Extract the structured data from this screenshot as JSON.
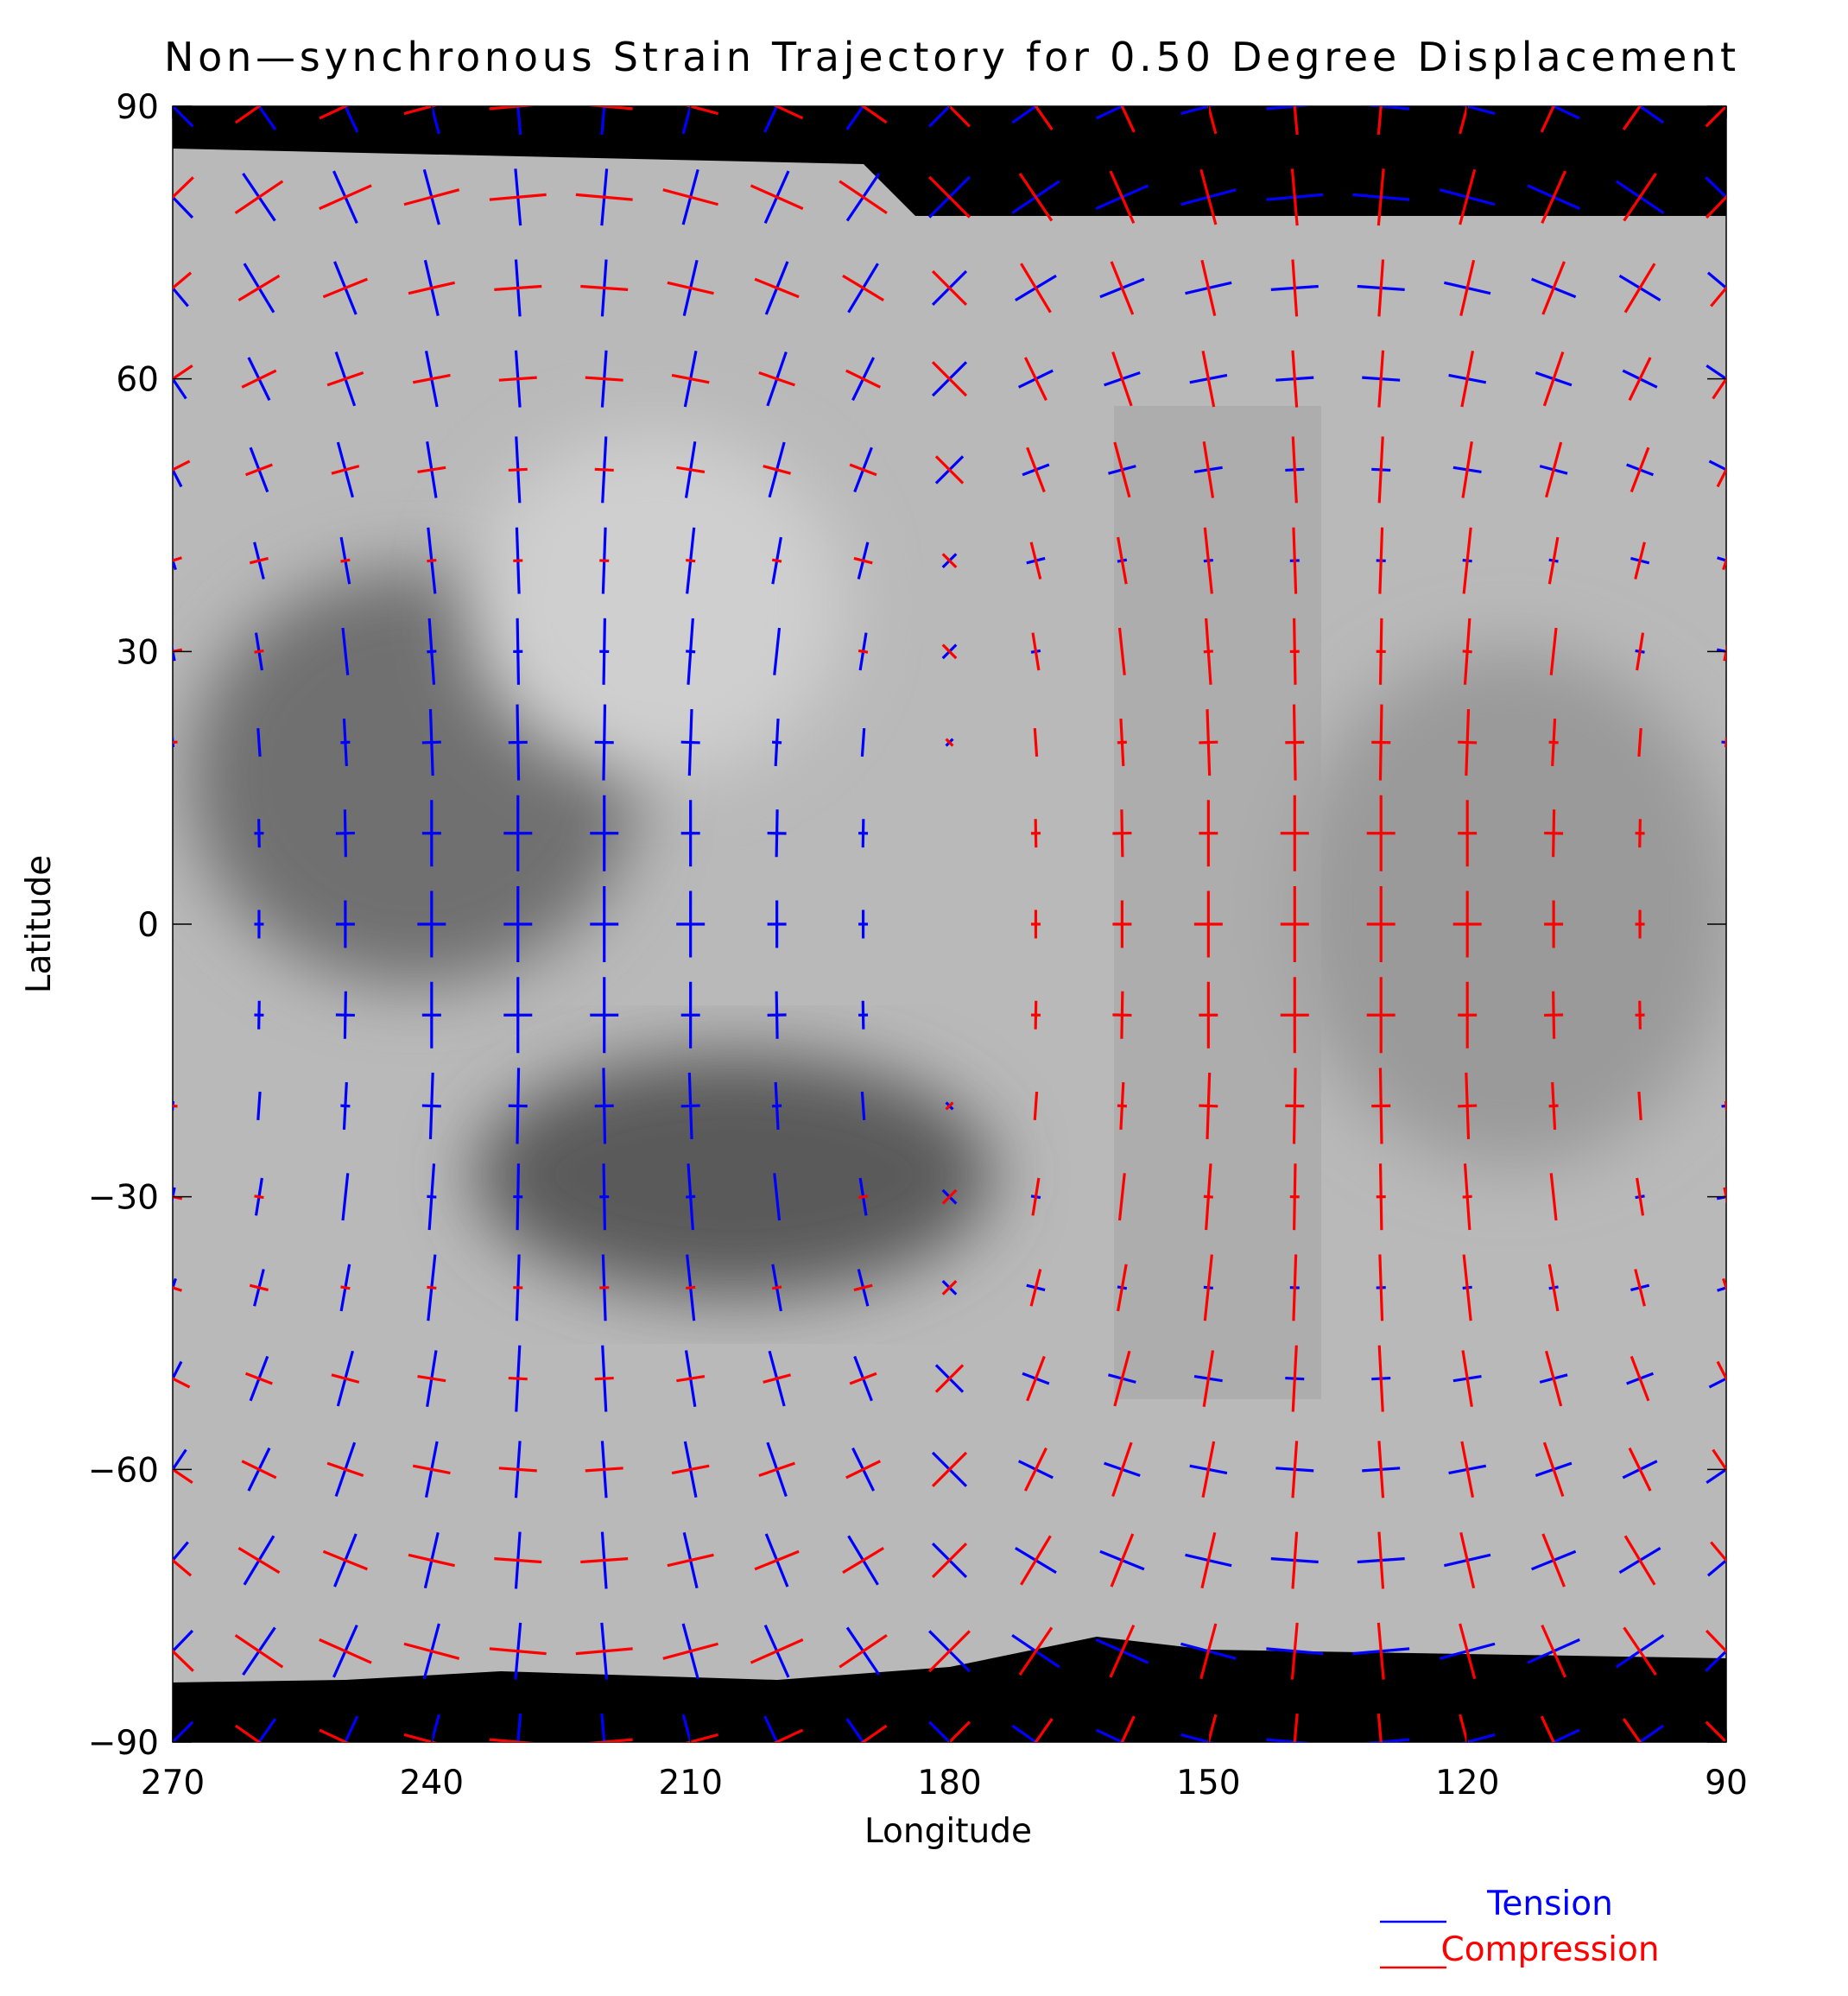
{
  "chart_data": {
    "type": "strain-field",
    "title": "Non—synchronous Strain Trajectory for 0.50 Degree Displacement",
    "xlabel": "Longitude",
    "ylabel": "Latitude",
    "xlim": [
      270,
      90
    ],
    "ylim": [
      -90,
      90
    ],
    "xticks": [
      270,
      240,
      210,
      180,
      150,
      120,
      90
    ],
    "yticks": [
      90,
      60,
      30,
      0,
      {
        "value": -30,
        "label": "−30"
      },
      {
        "value": -60,
        "label": "−60"
      },
      {
        "value": -90,
        "label": "−90"
      }
    ],
    "legend": "bottom-right",
    "series": [
      {
        "name": "Tension",
        "color": "#0000ff"
      },
      {
        "name": "Compression",
        "color": "#ff0000"
      }
    ],
    "x": [
      270,
      260,
      250,
      240,
      230,
      220,
      210,
      200,
      190,
      180,
      170,
      160,
      150,
      140,
      130,
      120,
      110,
      100,
      90
    ],
    "y": [
      90,
      80,
      70,
      60,
      50,
      40,
      30,
      20,
      10,
      0,
      -10,
      -20,
      -30,
      -40,
      -50,
      -60,
      -70,
      -80,
      -90
    ],
    "axis1": [
      [
        6,
        6,
        6,
        6,
        6,
        6,
        6,
        6,
        6,
        6,
        6,
        6,
        6,
        6,
        6,
        6,
        6,
        6,
        6
      ],
      [
        6,
        6,
        6,
        6,
        6,
        6,
        6,
        6,
        6,
        6,
        6,
        6,
        6,
        6,
        6,
        6,
        6,
        6,
        6
      ],
      [
        5,
        6,
        6,
        6,
        6,
        6,
        6,
        6,
        6,
        5,
        5,
        5,
        5,
        5,
        5,
        5,
        5,
        5,
        5
      ],
      [
        5,
        5,
        6,
        6,
        6,
        6,
        6,
        6,
        5,
        5,
        4,
        4,
        4,
        4,
        4,
        4,
        4,
        4,
        5
      ],
      [
        4,
        5,
        6,
        6,
        7,
        7,
        6,
        6,
        5,
        4,
        3,
        3,
        3,
        2,
        2,
        3,
        3,
        3,
        4
      ],
      [
        2,
        4,
        5,
        7,
        7,
        7,
        7,
        5,
        4,
        2,
        2,
        1,
        1,
        1,
        1,
        1,
        1,
        2,
        2
      ],
      [
        2,
        4,
        5,
        7,
        7,
        7,
        7,
        5,
        4,
        2,
        1,
        0,
        -1,
        -1,
        -1,
        -1,
        0,
        1,
        2
      ],
      [
        1,
        3,
        5,
        7,
        8,
        8,
        7,
        5,
        3,
        1,
        0,
        -1,
        -2,
        -2,
        -2,
        -2,
        -1,
        0,
        1
      ],
      [
        0,
        3,
        5,
        7,
        8,
        8,
        7,
        5,
        3,
        0,
        -1,
        -2,
        -2,
        -3,
        -3,
        -2,
        -2,
        -1,
        0
      ],
      [
        0,
        3,
        5,
        7,
        8,
        8,
        7,
        5,
        3,
        0,
        -1,
        -2,
        -3,
        -3,
        -3,
        -3,
        -2,
        -1,
        0
      ],
      [
        0,
        3,
        5,
        7,
        8,
        8,
        7,
        5,
        3,
        0,
        -1,
        -2,
        -2,
        -3,
        -3,
        -2,
        -2,
        -1,
        0
      ],
      [
        1,
        3,
        5,
        7,
        8,
        8,
        7,
        5,
        3,
        1,
        0,
        -1,
        -2,
        -2,
        -2,
        -2,
        -1,
        0,
        1
      ],
      [
        2,
        4,
        5,
        7,
        7,
        7,
        7,
        5,
        4,
        2,
        1,
        0,
        -1,
        -1,
        -1,
        -1,
        0,
        1,
        2
      ],
      [
        2,
        4,
        5,
        7,
        7,
        7,
        7,
        5,
        4,
        2,
        2,
        1,
        1,
        1,
        1,
        1,
        1,
        2,
        2
      ],
      [
        4,
        5,
        6,
        6,
        7,
        7,
        6,
        6,
        5,
        4,
        3,
        3,
        3,
        2,
        2,
        3,
        3,
        3,
        4
      ],
      [
        5,
        5,
        6,
        6,
        6,
        6,
        6,
        6,
        5,
        5,
        4,
        4,
        4,
        4,
        4,
        4,
        4,
        4,
        5
      ],
      [
        5,
        6,
        6,
        6,
        6,
        6,
        6,
        6,
        6,
        5,
        5,
        5,
        5,
        5,
        5,
        5,
        5,
        5,
        5
      ],
      [
        6,
        6,
        6,
        6,
        6,
        6,
        6,
        6,
        6,
        6,
        6,
        6,
        6,
        6,
        6,
        6,
        6,
        6,
        6
      ],
      [
        6,
        6,
        6,
        6,
        6,
        6,
        6,
        6,
        6,
        6,
        6,
        6,
        6,
        6,
        6,
        6,
        6,
        6,
        6
      ]
    ],
    "axis2": [
      [
        -6,
        -6,
        -6,
        -6,
        -6,
        -6,
        -6,
        -6,
        -6,
        -6,
        -6,
        -6,
        -6,
        -6,
        -6,
        -6,
        -6,
        -6,
        -6
      ],
      [
        -6,
        -6,
        -6,
        -6,
        -6,
        -6,
        -6,
        -6,
        -6,
        -6,
        -6,
        -6,
        -6,
        -6,
        -6,
        -6,
        -6,
        -6,
        -6
      ],
      [
        -5,
        -5,
        -5,
        -5,
        -5,
        -5,
        -5,
        -5,
        -5,
        -5,
        -6,
        -6,
        -6,
        -6,
        -6,
        -6,
        -6,
        -6,
        -5
      ],
      [
        -5,
        -4,
        -4,
        -4,
        -4,
        -4,
        -4,
        -4,
        -4,
        -5,
        -5,
        -6,
        -6,
        -6,
        -6,
        -6,
        -6,
        -5,
        -5
      ],
      [
        -4,
        -3,
        -3,
        -3,
        -2,
        -2,
        -3,
        -3,
        -3,
        -4,
        -5,
        -6,
        -6,
        -7,
        -7,
        -6,
        -6,
        -5,
        -4
      ],
      [
        -2,
        -2,
        -1,
        -1,
        -1,
        -1,
        -1,
        -1,
        -2,
        -2,
        -4,
        -5,
        -7,
        -7,
        -7,
        -7,
        -5,
        -4,
        -2
      ],
      [
        -2,
        -1,
        0,
        1,
        1,
        1,
        1,
        0,
        -1,
        -2,
        -4,
        -5,
        -7,
        -7,
        -7,
        -7,
        -5,
        -4,
        -2
      ],
      [
        -1,
        0,
        1,
        2,
        2,
        2,
        2,
        1,
        0,
        -1,
        -3,
        -5,
        -7,
        -8,
        -8,
        -7,
        -5,
        -3,
        -1
      ],
      [
        0,
        1,
        2,
        2,
        3,
        3,
        2,
        2,
        1,
        0,
        -3,
        -5,
        -7,
        -8,
        -8,
        -7,
        -5,
        -3,
        0
      ],
      [
        0,
        1,
        2,
        3,
        3,
        3,
        3,
        2,
        1,
        0,
        -3,
        -5,
        -7,
        -8,
        -8,
        -7,
        -5,
        -3,
        0
      ],
      [
        0,
        1,
        2,
        2,
        3,
        3,
        2,
        2,
        1,
        0,
        -3,
        -5,
        -7,
        -8,
        -8,
        -7,
        -5,
        -3,
        0
      ],
      [
        -1,
        0,
        1,
        2,
        2,
        2,
        2,
        1,
        0,
        -1,
        -3,
        -5,
        -7,
        -8,
        -8,
        -7,
        -5,
        -3,
        -1
      ],
      [
        -2,
        -1,
        0,
        1,
        1,
        1,
        1,
        0,
        -1,
        -2,
        -4,
        -5,
        -7,
        -7,
        -7,
        -7,
        -5,
        -4,
        -2
      ],
      [
        -2,
        -2,
        -1,
        -1,
        -1,
        -1,
        -1,
        -1,
        -2,
        -2,
        -4,
        -5,
        -7,
        -7,
        -7,
        -7,
        -5,
        -4,
        -2
      ],
      [
        -4,
        -3,
        -3,
        -3,
        -2,
        -2,
        -3,
        -3,
        -3,
        -4,
        -5,
        -6,
        -6,
        -7,
        -7,
        -6,
        -6,
        -5,
        -4
      ],
      [
        -5,
        -4,
        -4,
        -4,
        -4,
        -4,
        -4,
        -4,
        -4,
        -5,
        -5,
        -6,
        -6,
        -6,
        -6,
        -6,
        -6,
        -5,
        -5
      ],
      [
        -5,
        -5,
        -5,
        -5,
        -5,
        -5,
        -5,
        -5,
        -5,
        -5,
        -6,
        -6,
        -6,
        -6,
        -6,
        -6,
        -6,
        -6,
        -5
      ],
      [
        -6,
        -6,
        -6,
        -6,
        -6,
        -6,
        -6,
        -6,
        -6,
        -6,
        -6,
        -6,
        -6,
        -6,
        -6,
        -6,
        -6,
        -6,
        -6
      ],
      [
        -6,
        -6,
        -6,
        -6,
        -6,
        -6,
        -6,
        -6,
        -6,
        -6,
        -6,
        -6,
        -6,
        -6,
        -6,
        -6,
        -6,
        -6,
        -6
      ]
    ],
    "azimuth": [
      [
        -45,
        -35,
        -25,
        -15,
        -5,
        5,
        15,
        25,
        35,
        45,
        55,
        65,
        75,
        85,
        95,
        105,
        115,
        125,
        135
      ],
      [
        -44,
        -34,
        -24,
        -15,
        -5,
        5,
        15,
        24,
        34,
        45,
        56,
        66,
        75,
        85,
        95,
        105,
        114,
        124,
        134
      ],
      [
        -40,
        -31,
        -22,
        -13,
        -4,
        4,
        13,
        22,
        31,
        45,
        59,
        68,
        77,
        86,
        94,
        103,
        112,
        121,
        130
      ],
      [
        -34,
        -26,
        -19,
        -11,
        -4,
        4,
        11,
        19,
        26,
        45,
        64,
        71,
        79,
        86,
        94,
        101,
        109,
        116,
        124
      ],
      [
        -27,
        -21,
        -15,
        -9,
        -3,
        3,
        9,
        15,
        21,
        45,
        69,
        75,
        81,
        87,
        93,
        99,
        105,
        111,
        117
      ],
      [
        -18,
        -14,
        -10,
        -6,
        -2,
        2,
        6,
        10,
        14,
        45,
        76,
        80,
        84,
        88,
        92,
        96,
        100,
        104,
        108
      ],
      [
        -11,
        -9,
        -6,
        -4,
        -1,
        1,
        4,
        6,
        9,
        45,
        81,
        84,
        86,
        89,
        91,
        94,
        96,
        99,
        101
      ],
      [
        -5,
        -4,
        -3,
        -2,
        -1,
        1,
        2,
        3,
        4,
        45,
        86,
        87,
        88,
        89,
        91,
        92,
        93,
        94,
        95
      ],
      [
        -1,
        -1,
        -1,
        0,
        0,
        0,
        0,
        1,
        1,
        45,
        89,
        89,
        90,
        90,
        90,
        90,
        91,
        91,
        91
      ],
      [
        0,
        0,
        0,
        0,
        0,
        0,
        0,
        0,
        0,
        45,
        90,
        90,
        90,
        90,
        90,
        90,
        90,
        90,
        90
      ],
      [
        1,
        1,
        1,
        0,
        0,
        0,
        0,
        -1,
        -1,
        -45,
        -89,
        -89,
        -90,
        -90,
        -90,
        -90,
        -91,
        -91,
        -91
      ],
      [
        5,
        4,
        3,
        2,
        1,
        -1,
        -2,
        -3,
        -4,
        -45,
        -86,
        -87,
        -88,
        -89,
        -91,
        -92,
        -93,
        -94,
        -95
      ],
      [
        11,
        9,
        6,
        4,
        1,
        -1,
        -4,
        -6,
        -9,
        -45,
        -81,
        -84,
        -86,
        -89,
        -91,
        -94,
        -96,
        -99,
        -101
      ],
      [
        18,
        14,
        10,
        6,
        2,
        -2,
        -6,
        -10,
        -14,
        -45,
        -76,
        -80,
        -84,
        -88,
        -92,
        -96,
        -100,
        -104,
        -108
      ],
      [
        27,
        21,
        15,
        9,
        3,
        -3,
        -9,
        -15,
        -21,
        -45,
        -69,
        -75,
        -81,
        -87,
        -93,
        -99,
        -105,
        -111,
        -117
      ],
      [
        34,
        26,
        19,
        11,
        4,
        -4,
        -11,
        -19,
        -26,
        -45,
        -64,
        -71,
        -79,
        -86,
        -94,
        -101,
        -109,
        -116,
        -124
      ],
      [
        40,
        31,
        22,
        13,
        4,
        -4,
        -13,
        -22,
        -31,
        -45,
        -59,
        -68,
        -77,
        -86,
        -94,
        -103,
        -112,
        -121,
        -130
      ],
      [
        44,
        34,
        24,
        15,
        5,
        -5,
        -15,
        -24,
        -34,
        -45,
        -56,
        -66,
        -75,
        -85,
        -95,
        -105,
        -114,
        -124,
        -134
      ],
      [
        45,
        35,
        25,
        15,
        5,
        -5,
        -15,
        -25,
        -35,
        -45,
        -55,
        -65,
        -75,
        -85,
        -95,
        -105,
        -115,
        -125,
        -135
      ]
    ]
  }
}
